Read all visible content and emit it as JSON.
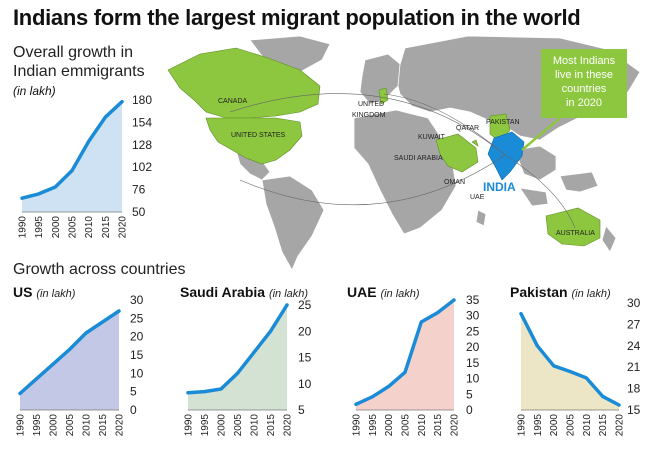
{
  "title": "Indians form the largest migrant population in the world",
  "overall": {
    "title_line1": "Overall growth in",
    "title_line2": "Indian emmigrants",
    "unit": "(in lakh)"
  },
  "map": {
    "labels": [
      "CANADA",
      "UNITED STATES",
      "UNITED KINGDOM",
      "KUWAIT",
      "QATAR",
      "PAKISTAN",
      "SAUDI ARABIA",
      "OMAN",
      "UAE",
      "INDIA",
      "AUSTRALIA"
    ],
    "callout_lines": [
      "Most Indians",
      "live in these",
      "countries",
      "in 2020"
    ]
  },
  "growth_title": "Growth across countries",
  "colors": {
    "line": "#1a8bd6",
    "overall_fill": "#cfe2f3",
    "us_fill": "#c3c8e6",
    "saudi_fill": "#d3e2d3",
    "uae_fill": "#f5d1cc",
    "pakistan_fill": "#ede6c6",
    "highlight_green": "#8dc63f",
    "map_grey": "#9e9e9e"
  },
  "chart_data": [
    {
      "id": "overall",
      "type": "area",
      "title": "Overall growth in Indian emmigrants",
      "unit": "(in lakh)",
      "x": [
        "1990",
        "1995",
        "2000",
        "2005",
        "2010",
        "2015",
        "2020"
      ],
      "values": [
        66,
        71,
        79,
        98,
        132,
        160,
        178
      ],
      "yticks": [
        50,
        76,
        102,
        128,
        154,
        180
      ],
      "ylim": [
        50,
        180
      ],
      "axis_side": "right"
    },
    {
      "id": "us",
      "type": "area",
      "title": "US",
      "unit": "(in lakh)",
      "x": [
        "1990",
        "1995",
        "2000",
        "2005",
        "2010",
        "2015",
        "2020"
      ],
      "values": [
        4.5,
        8.5,
        12.5,
        16.5,
        21,
        24,
        27
      ],
      "yticks": [
        0,
        5,
        10,
        15,
        20,
        25,
        30
      ],
      "ylim": [
        0,
        30
      ],
      "axis_side": "right"
    },
    {
      "id": "saudi",
      "type": "area",
      "title": "Saudi Arabia",
      "unit": "(in lakh)",
      "x": [
        "1990",
        "1995",
        "2000",
        "2005",
        "2010",
        "2015",
        "2020"
      ],
      "values": [
        8.3,
        8.5,
        9,
        12,
        16,
        20,
        25
      ],
      "yticks": [
        5,
        10,
        15,
        20,
        25
      ],
      "ylim": [
        5,
        25
      ],
      "axis_side": "right"
    },
    {
      "id": "uae",
      "type": "area",
      "title": "UAE",
      "unit": "(in lakh)",
      "x": [
        "1990",
        "1995",
        "2000",
        "2005",
        "2010",
        "2015",
        "2020"
      ],
      "values": [
        1.8,
        4.2,
        7.5,
        12,
        28,
        31,
        35
      ],
      "yticks": [
        0,
        5,
        10,
        15,
        20,
        25,
        30,
        35
      ],
      "ylim": [
        0,
        35
      ],
      "axis_side": "right"
    },
    {
      "id": "pakistan",
      "type": "area",
      "title": "Pakistan",
      "unit": "(in lakh)",
      "x": [
        "1990",
        "1995",
        "2000",
        "2005",
        "2010",
        "2015",
        "2020"
      ],
      "values": [
        28.5,
        24,
        21.2,
        20.4,
        19.5,
        16.9,
        15.7
      ],
      "yticks": [
        15,
        18,
        21,
        24,
        27,
        30
      ],
      "ylim": [
        15,
        30
      ],
      "axis_side": "right"
    }
  ]
}
